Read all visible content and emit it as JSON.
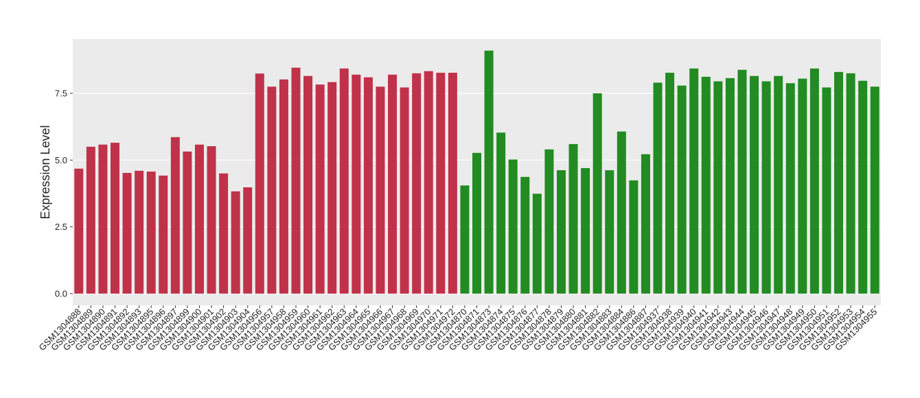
{
  "chart_data": {
    "type": "bar",
    "y_label": "Expression Level",
    "categories": [
      "GSM1304888",
      "GSM1304889",
      "GSM1304890",
      "GSM1304891",
      "GSM1304892",
      "GSM1304893",
      "GSM1304895",
      "GSM1304896",
      "GSM1304897",
      "GSM1304899",
      "GSM1304900",
      "GSM1304901",
      "GSM1304902",
      "GSM1304903",
      "GSM1304904",
      "GSM1304956",
      "GSM1304957",
      "GSM1304958",
      "GSM1304959",
      "GSM1304960",
      "GSM1304961",
      "GSM1304962",
      "GSM1304963",
      "GSM1304964",
      "GSM1304965",
      "GSM1304966",
      "GSM1304967",
      "GSM1304968",
      "GSM1304969",
      "GSM1304970",
      "GSM1304971",
      "GSM1304972",
      "GSM1304870",
      "GSM1304871",
      "GSM1304873",
      "GSM1304874",
      "GSM1304875",
      "GSM1304876",
      "GSM1304877",
      "GSM1304878",
      "GSM1304879",
      "GSM1304880",
      "GSM1304881",
      "GSM1304882",
      "GSM1304883",
      "GSM1304884",
      "GSM1304886",
      "GSM1304887",
      "GSM1304937",
      "GSM1304938",
      "GSM1304939",
      "GSM1304940",
      "GSM1304941",
      "GSM1304942",
      "GSM1304943",
      "GSM1304944",
      "GSM1304945",
      "GSM1304946",
      "GSM1304947",
      "GSM1304948",
      "GSM1304949",
      "GSM1304950",
      "GSM1304951",
      "GSM1304952",
      "GSM1304953",
      "GSM1304954",
      "GSM1304955"
    ],
    "values": [
      4.68,
      5.5,
      5.58,
      5.65,
      4.52,
      4.6,
      4.57,
      4.42,
      5.86,
      5.32,
      5.58,
      5.52,
      4.5,
      3.83,
      3.98,
      8.24,
      7.75,
      8.02,
      8.46,
      8.15,
      7.83,
      7.92,
      8.43,
      8.2,
      8.1,
      7.75,
      8.2,
      7.72,
      8.25,
      8.33,
      8.27,
      8.27,
      4.05,
      5.27,
      9.1,
      6.03,
      5.02,
      4.37,
      3.74,
      5.4,
      4.62,
      5.6,
      4.7,
      7.5,
      4.62,
      6.07,
      4.24,
      5.22,
      7.9,
      8.27,
      7.79,
      8.43,
      8.12,
      7.95,
      8.07,
      8.38,
      8.15,
      7.95,
      8.15,
      7.88,
      8.05,
      8.43,
      7.72,
      8.3,
      8.25,
      7.97,
      7.75
    ],
    "colors": [
      "#c0314a",
      "#c0314a",
      "#c0314a",
      "#c0314a",
      "#c0314a",
      "#c0314a",
      "#c0314a",
      "#c0314a",
      "#c0314a",
      "#c0314a",
      "#c0314a",
      "#c0314a",
      "#c0314a",
      "#c0314a",
      "#c0314a",
      "#c0314a",
      "#c0314a",
      "#c0314a",
      "#c0314a",
      "#c0314a",
      "#c0314a",
      "#c0314a",
      "#c0314a",
      "#c0314a",
      "#c0314a",
      "#c0314a",
      "#c0314a",
      "#c0314a",
      "#c0314a",
      "#c0314a",
      "#c0314a",
      "#c0314a",
      "#228b22",
      "#228b22",
      "#228b22",
      "#228b22",
      "#228b22",
      "#228b22",
      "#228b22",
      "#228b22",
      "#228b22",
      "#228b22",
      "#228b22",
      "#228b22",
      "#228b22",
      "#228b22",
      "#228b22",
      "#228b22",
      "#228b22",
      "#228b22",
      "#228b22",
      "#228b22",
      "#228b22",
      "#228b22",
      "#228b22",
      "#228b22",
      "#228b22",
      "#228b22",
      "#228b22",
      "#228b22",
      "#228b22",
      "#228b22",
      "#228b22",
      "#228b22",
      "#228b22",
      "#228b22",
      "#228b22"
    ],
    "ylim": [
      -0.44,
      9.53
    ],
    "yticks": [
      {
        "value": 0,
        "label": "0.0"
      },
      2.5,
      {
        "value": 5,
        "label": "5.0"
      },
      7.5
    ],
    "grid": true
  }
}
